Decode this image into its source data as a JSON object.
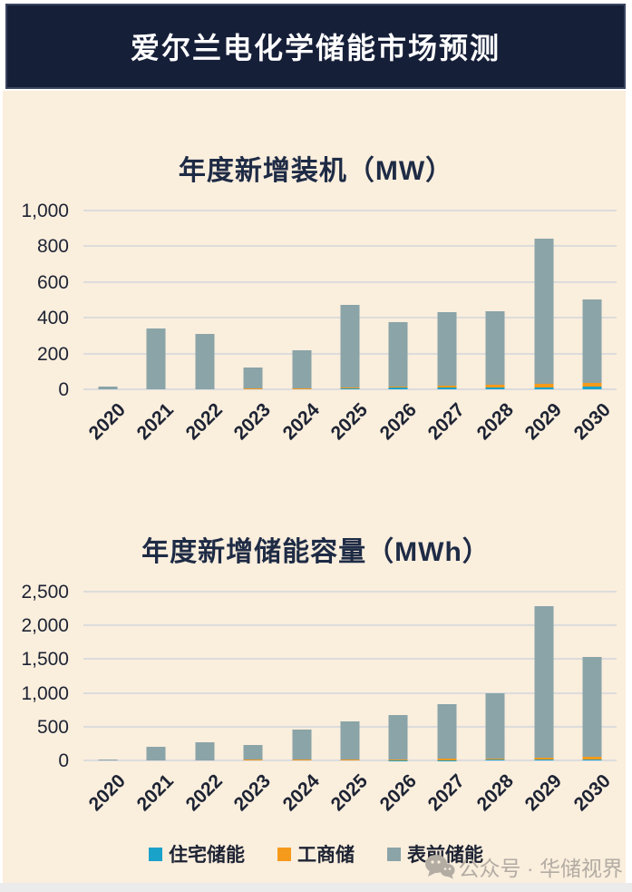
{
  "header": {
    "title": "爱尔兰电化学储能市场预测"
  },
  "style": {
    "background": "#faeedd",
    "header_bg": "#161f38",
    "header_text": "#ffffff",
    "bar_blue": "#1aa2ca",
    "bar_orange": "#f59a1b",
    "bar_gray": "#8aa4a8",
    "gridline": "#dcdcdc",
    "axis_text": "#1d2333",
    "title_text": "#1e2b45",
    "watermark_text": "#b3aca3"
  },
  "chart_data": [
    {
      "type": "bar",
      "stacked": true,
      "title": "年度新增装机（MW）",
      "ylabel": "MW",
      "categories": [
        "2020",
        "2021",
        "2022",
        "2023",
        "2024",
        "2025",
        "2026",
        "2027",
        "2028",
        "2029",
        "2030"
      ],
      "ylim": [
        0,
        1000
      ],
      "grid": true,
      "yticks": [
        {
          "value": 0,
          "label": "0"
        },
        {
          "value": 200,
          "label": "200"
        },
        {
          "value": 400,
          "label": "400"
        },
        {
          "value": 600,
          "label": "600"
        },
        {
          "value": 800,
          "label": "800"
        },
        {
          "value": 1000,
          "label": "1,000"
        }
      ],
      "series": [
        {
          "name": "住宅储能",
          "color_key": "bar_blue",
          "values": [
            0,
            0,
            0,
            0,
            0,
            4,
            8,
            8,
            10,
            12,
            14
          ]
        },
        {
          "name": "工商储",
          "color_key": "bar_orange",
          "values": [
            0,
            0,
            0,
            5,
            6,
            8,
            7,
            10,
            14,
            20,
            22
          ]
        },
        {
          "name": "表前储能",
          "color_key": "bar_gray",
          "values": [
            15,
            340,
            310,
            115,
            214,
            458,
            360,
            412,
            411,
            813,
            469
          ]
        }
      ],
      "totals": [
        15,
        340,
        310,
        120,
        220,
        470,
        375,
        430,
        435,
        845,
        505
      ]
    },
    {
      "type": "bar",
      "stacked": true,
      "title": "年度新增储能容量（MWh）",
      "ylabel": "MWh",
      "categories": [
        "2020",
        "2021",
        "2022",
        "2023",
        "2024",
        "2025",
        "2026",
        "2027",
        "2028",
        "2029",
        "2030"
      ],
      "ylim": [
        0,
        2500
      ],
      "grid": true,
      "yticks": [
        {
          "value": 0,
          "label": "0"
        },
        {
          "value": 500,
          "label": "500"
        },
        {
          "value": 1000,
          "label": "1,000"
        },
        {
          "value": 1500,
          "label": "1,500"
        },
        {
          "value": 2000,
          "label": "2,000"
        },
        {
          "value": 2500,
          "label": "2,500"
        }
      ],
      "series": [
        {
          "name": "住宅储能",
          "color_key": "bar_blue",
          "values": [
            0,
            0,
            0,
            0,
            0,
            0,
            5,
            5,
            8,
            12,
            20
          ]
        },
        {
          "name": "工商储",
          "color_key": "bar_orange",
          "values": [
            0,
            0,
            0,
            8,
            10,
            15,
            15,
            18,
            22,
            30,
            35
          ]
        },
        {
          "name": "表前储能",
          "color_key": "bar_gray",
          "values": [
            15,
            200,
            275,
            222,
            445,
            560,
            655,
            807,
            965,
            2238,
            1475
          ]
        }
      ],
      "totals": [
        15,
        200,
        275,
        230,
        455,
        575,
        675,
        830,
        995,
        2280,
        1530
      ]
    }
  ],
  "legend": {
    "items": [
      {
        "label": "住宅储能",
        "color": "#1aa2ca"
      },
      {
        "label": "工商储",
        "color": "#f59a1b"
      },
      {
        "label": "表前储能",
        "color": "#8aa4a8"
      }
    ]
  },
  "watermark": {
    "text": "公众号 · 华储视界"
  }
}
